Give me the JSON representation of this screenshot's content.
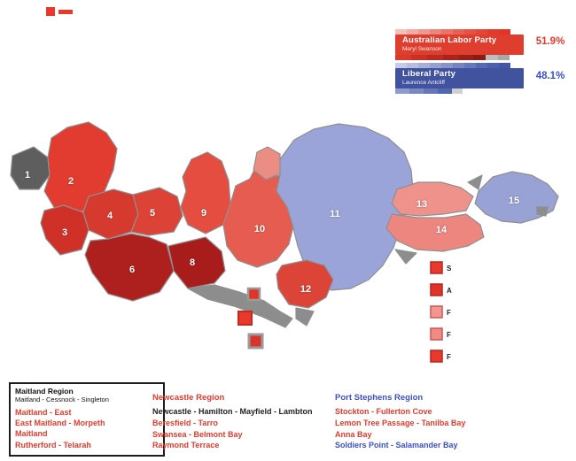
{
  "infobox": {
    "parties": [
      {
        "name": "Australian Labor Party",
        "leader": "Meryl Swanson",
        "color": "#df3d2d",
        "percent": "51.9%",
        "percent_color": "#e8392c",
        "strip_top": [
          {
            "c": "#f6c0ba",
            "w": 13
          },
          {
            "c": "#f3aba3",
            "w": 13
          },
          {
            "c": "#f09890",
            "w": 13
          },
          {
            "c": "#ee8579",
            "w": 13
          },
          {
            "c": "#ec7264",
            "w": 13
          },
          {
            "c": "#e96052",
            "w": 13
          },
          {
            "c": "#e65143",
            "w": 13
          },
          {
            "c": "#e44537",
            "w": 13
          },
          {
            "c": "#e23b2e",
            "w": 13
          },
          {
            "c": "#e03428",
            "w": 13
          }
        ],
        "strip_bottom": [
          {
            "c": "#d9392d",
            "w": 18
          },
          {
            "c": "#c93126",
            "w": 18
          },
          {
            "c": "#b92a20",
            "w": 18
          },
          {
            "c": "#a9241c",
            "w": 18
          },
          {
            "c": "#991f18",
            "w": 16
          },
          {
            "c": "#8a1b15",
            "w": 14
          },
          {
            "c": "#bdbdbd",
            "w": 14
          },
          {
            "c": "#a9a9a9",
            "w": 13
          }
        ]
      },
      {
        "name": "Liberal Party",
        "leader": "Laurence Antcliff",
        "color": "#41529f",
        "percent": "48.1%",
        "percent_color": "#3b4fd0",
        "strip_top": [
          {
            "c": "#c6cbe6",
            "w": 13
          },
          {
            "c": "#b6bdde",
            "w": 13
          },
          {
            "c": "#a6afd7",
            "w": 13
          },
          {
            "c": "#96a1d0",
            "w": 13
          },
          {
            "c": "#8693c9",
            "w": 13
          },
          {
            "c": "#7685c2",
            "w": 13
          },
          {
            "c": "#6677bb",
            "w": 13
          },
          {
            "c": "#5669b4",
            "w": 13
          },
          {
            "c": "#4c5fae",
            "w": 13
          },
          {
            "c": "#4255a8",
            "w": 13
          }
        ],
        "strip_bottom": [
          {
            "c": "#8f9bce",
            "w": 16
          },
          {
            "c": "#7a88c4",
            "w": 16
          },
          {
            "c": "#6577ba",
            "w": 16
          },
          {
            "c": "#5066b0",
            "w": 16
          },
          {
            "c": "#d0d0d0",
            "w": 12
          }
        ]
      }
    ]
  },
  "map": {
    "districts": [
      {
        "num": "1",
        "color": "#5e5e5e"
      },
      {
        "num": "2",
        "color": "#e23b30"
      },
      {
        "num": "3",
        "color": "#cf3129"
      },
      {
        "num": "4",
        "color": "#d63a2f"
      },
      {
        "num": "5",
        "color": "#dc4236"
      },
      {
        "num": "6",
        "color": "#ae201d"
      },
      {
        "num": "8",
        "color": "#a81d1c"
      },
      {
        "num": "9",
        "color": "#e44d40"
      },
      {
        "num": "10",
        "color": "#e75c50"
      },
      {
        "num": "11",
        "color": "#9aa4d8"
      },
      {
        "num": "12",
        "color": "#dc4438"
      },
      {
        "num": "13",
        "color": "#f0928c"
      },
      {
        "num": "14",
        "color": "#ee8680"
      },
      {
        "num": "15",
        "color": "#98a2d4"
      }
    ],
    "finger_color": "#ec8d84",
    "coast_color": "#8d8d8d",
    "floating_squares": [
      {
        "color": "#e03428",
        "border": "#9a9a9a"
      },
      {
        "color": "#e8392c",
        "border": "#c22a20"
      },
      {
        "color": "#d8342a",
        "border": "#9a9a9a"
      }
    ],
    "insets": [
      {
        "label": "S",
        "color": "#e8392c"
      },
      {
        "label": "A",
        "color": "#e03428"
      },
      {
        "label": "F",
        "color": "#f2978f"
      },
      {
        "label": "F",
        "color": "#f08a82"
      },
      {
        "label": "F",
        "color": "#e8392c"
      }
    ]
  },
  "legend": {
    "left_box": {
      "title_line1": "Maitland Region",
      "title_line2": "Maitland - Cessnock - Singleton",
      "items": [
        {
          "text": "Maitland - East",
          "color": "#e8392c"
        },
        {
          "text": "East Maitland - Morpeth",
          "color": "#e8392c"
        },
        {
          "text": "Maitland",
          "color": "#e8392c"
        },
        {
          "text": "Rutherford - Telarah",
          "color": "#e8392c"
        }
      ]
    },
    "middle": {
      "heading": "Newcastle Region",
      "heading_color": "#e8392c",
      "items": [
        {
          "text": "Newcastle - Hamilton - Mayfield - Lambton",
          "color": "#222222"
        },
        {
          "text": "Beresfield - Tarro",
          "color": "#e8392c"
        },
        {
          "text": "Swansea - Belmont Bay",
          "color": "#e8392c"
        },
        {
          "text": "Raymond Terrace",
          "color": "#e8392c"
        }
      ]
    },
    "right": {
      "heading": "Port Stephens Region",
      "heading_color": "#3b4fd0",
      "items": [
        {
          "text": "Stockton - Fullerton Cove",
          "color": "#e8392c"
        },
        {
          "text": "Lemon Tree Passage - Tanilba Bay",
          "color": "#e8392c"
        },
        {
          "text": "Anna Bay",
          "color": "#e8392c"
        },
        {
          "text": "Soldiers Point - Salamander Bay",
          "color": "#3b4fd0"
        }
      ]
    }
  },
  "watermark": {
    "color": "#e8392c"
  }
}
